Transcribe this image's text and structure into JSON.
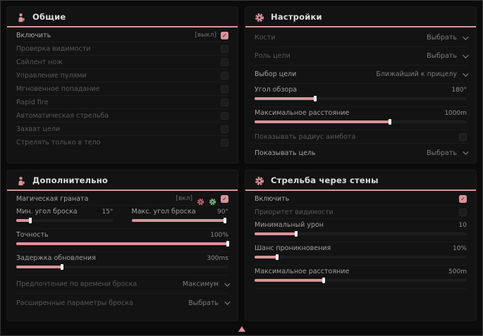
{
  "accent": "#d9949a",
  "ui": {
    "select_placeholder": "Выбрать"
  },
  "panels": [
    {
      "id": "general",
      "title": "Общие",
      "icon": "person-icon",
      "rows": [
        {
          "type": "checkbox",
          "label": "Включить",
          "tag": "[выкл]",
          "checked": true,
          "bright": true
        },
        {
          "type": "checkbox",
          "label": "Проверка видимости",
          "checked": false
        },
        {
          "type": "checkbox",
          "label": "Сайлент нож",
          "checked": false
        },
        {
          "type": "checkbox",
          "label": "Управление пулями",
          "checked": false
        },
        {
          "type": "checkbox",
          "label": "Мгновенное попадание",
          "checked": false
        },
        {
          "type": "checkbox",
          "label": "Rapid fire",
          "checked": false
        },
        {
          "type": "checkbox",
          "label": "Автоматическая стрельба",
          "checked": false
        },
        {
          "type": "checkbox",
          "label": "Захват цели",
          "checked": false
        },
        {
          "type": "checkbox",
          "label": "Стрелять только в тело",
          "checked": false
        }
      ]
    },
    {
      "id": "settings",
      "title": "Настройки",
      "icon": "gear-icon",
      "rows": [
        {
          "type": "dropdown",
          "label": "Кости",
          "value": "Выбрать",
          "bright": false
        },
        {
          "type": "dropdown",
          "label": "Роль цели",
          "value": "Выбрать",
          "bright": false
        },
        {
          "type": "dropdown",
          "label": "Выбор цели",
          "value": "Ближайший к прицелу",
          "bright": true
        },
        {
          "type": "slider",
          "label": "Угол обзора",
          "value": "180°",
          "fill": 29
        },
        {
          "type": "slider",
          "label": "Максимальное расстояние",
          "value": "1000m",
          "fill": 64
        },
        {
          "type": "checkbox",
          "label": "Показывать радиус аимбота",
          "checked": false
        },
        {
          "type": "dropdown",
          "label": "Показывать цель",
          "value": "Выбрать",
          "bright": true
        }
      ]
    },
    {
      "id": "additional",
      "title": "Дополнительно",
      "icon": "person-icon",
      "rows": [
        {
          "type": "checkbox",
          "label": "Магическая граната",
          "tag": "[вкл]",
          "checked": true,
          "bright": true,
          "extra_icons": [
            {
              "name": "keybind-gear-red-icon",
              "color": "#c9606c"
            },
            {
              "name": "keybind-gear-green-icon",
              "color": "#7cb87a"
            }
          ]
        },
        {
          "type": "slider-pair",
          "left": {
            "label": "Мин. угол броска",
            "value": "15°",
            "fill": 15
          },
          "right": {
            "label": "Макс. угол броска",
            "value": "90°",
            "fill": 97
          }
        },
        {
          "type": "slider",
          "label": "Точность",
          "value": "100%",
          "fill": 100
        },
        {
          "type": "slider",
          "label": "Задержка обновления",
          "value": "300ms",
          "fill": 22
        },
        {
          "type": "dropdown",
          "label": "Предпочтение по времени броска",
          "value": "Максимум",
          "bright": false
        },
        {
          "type": "dropdown",
          "label": "Расширенные параметры броска",
          "value": "Выбрать",
          "bright": false
        }
      ]
    },
    {
      "id": "wallbang",
      "title": "Стрельба через стены",
      "icon": "gear-icon",
      "rows": [
        {
          "type": "checkbox",
          "label": "Включить",
          "checked": true,
          "bright": true
        },
        {
          "type": "checkbox",
          "label": "Приоритет видимости",
          "checked": false
        },
        {
          "type": "slider",
          "label": "Минимальный урон",
          "value": "10",
          "fill": 20
        },
        {
          "type": "slider",
          "label": "Шанс проникновения",
          "value": "10%",
          "fill": 11
        },
        {
          "type": "slider",
          "label": "Максимальное расстояние",
          "value": "500m",
          "fill": 33
        }
      ]
    }
  ]
}
